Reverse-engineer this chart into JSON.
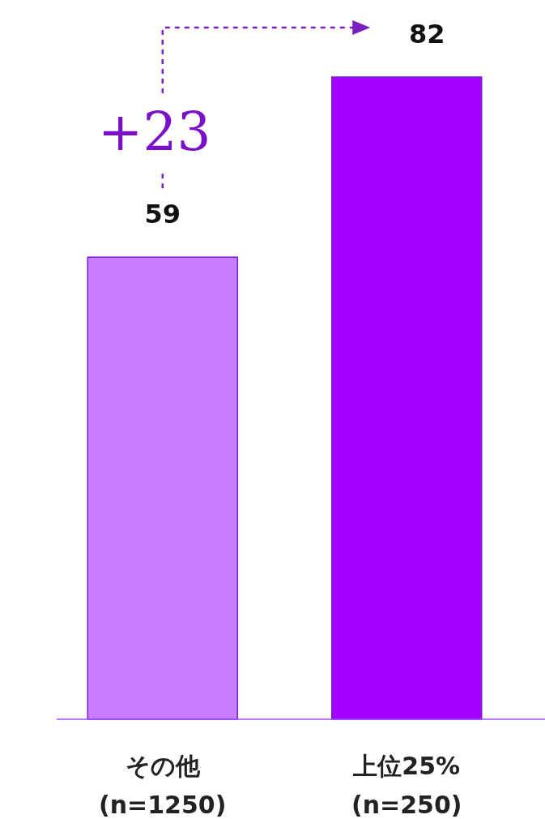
{
  "chart_data": {
    "type": "bar",
    "categories": [
      "その他\n(n=1250)",
      "上位25%\n(n=250)"
    ],
    "values": [
      59,
      82
    ],
    "colors": [
      "#c77dff",
      "#a200ff"
    ],
    "data_labels": true,
    "annotations": [
      "+23"
    ]
  }
}
